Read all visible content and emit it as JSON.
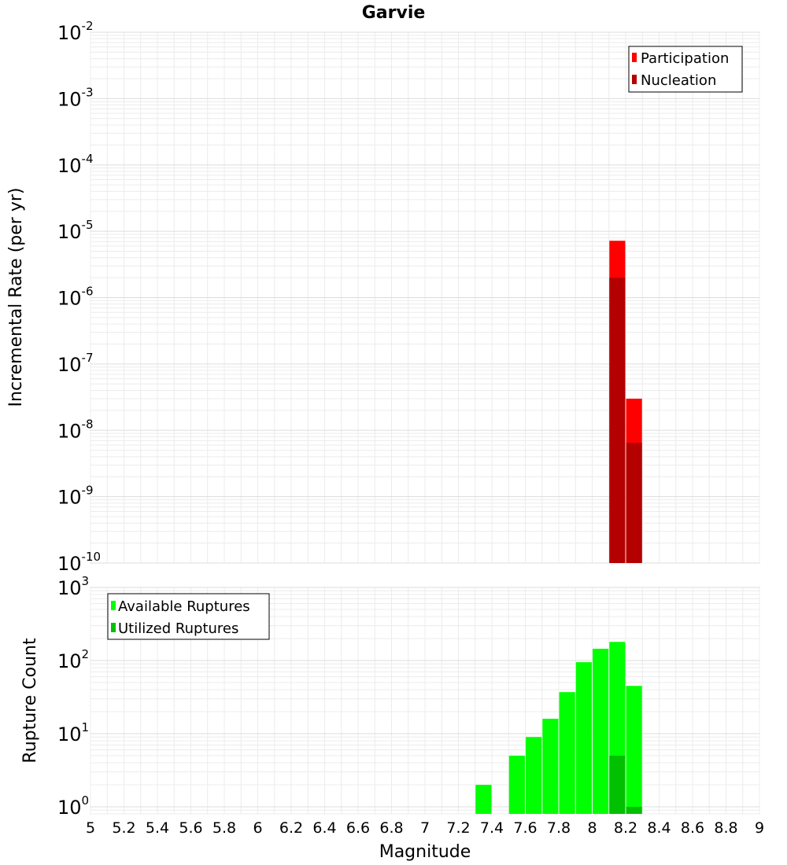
{
  "chart_data": [
    {
      "type": "bar",
      "title": "Garvie",
      "xlabel": "",
      "ylabel": "Incremental Rate (per yr)",
      "xlim": [
        5,
        9
      ],
      "ylim": [
        1e-10,
        0.01
      ],
      "yscale": "log",
      "grid": true,
      "legend_position": "top-right",
      "ytick_labels": [
        {
          "base": "10",
          "exp": "-10",
          "value": 1e-10
        },
        {
          "base": "10",
          "exp": "-9",
          "value": 1e-09
        },
        {
          "base": "10",
          "exp": "-8",
          "value": 1e-08
        },
        {
          "base": "10",
          "exp": "-7",
          "value": 1e-07
        },
        {
          "base": "10",
          "exp": "-6",
          "value": 1e-06
        },
        {
          "base": "10",
          "exp": "-5",
          "value": 1e-05
        },
        {
          "base": "10",
          "exp": "-4",
          "value": 0.0001
        },
        {
          "base": "10",
          "exp": "-3",
          "value": 0.001
        },
        {
          "base": "10",
          "exp": "-2",
          "value": 0.01
        }
      ],
      "series": [
        {
          "name": "Participation",
          "color": "#ff0000",
          "x": [
            8.15,
            8.25
          ],
          "values": [
            7.2e-06,
            3e-08
          ]
        },
        {
          "name": "Nucleation",
          "color": "#b40000",
          "x": [
            8.15,
            8.25
          ],
          "values": [
            2e-06,
            6.5e-09
          ]
        }
      ]
    },
    {
      "type": "bar",
      "title": "",
      "xlabel": "Magnitude",
      "ylabel": "Rupture Count",
      "xlim": [
        5,
        9
      ],
      "ylim": [
        0.8,
        1000
      ],
      "yscale": "log",
      "grid": true,
      "legend_position": "top-left",
      "xtick_labels": [
        "5",
        "5.2",
        "5.4",
        "5.6",
        "5.8",
        "6",
        "6.2",
        "6.4",
        "6.6",
        "6.8",
        "7",
        "7.2",
        "7.4",
        "7.6",
        "7.8",
        "8",
        "8.2",
        "8.4",
        "8.6",
        "8.8",
        "9"
      ],
      "ytick_labels": [
        {
          "base": "10",
          "exp": "0",
          "value": 1
        },
        {
          "base": "10",
          "exp": "1",
          "value": 10
        },
        {
          "base": "10",
          "exp": "2",
          "value": 100
        },
        {
          "base": "10",
          "exp": "3",
          "value": 1000
        }
      ],
      "series": [
        {
          "name": "Available Ruptures",
          "color": "#00ff00",
          "x": [
            7.35,
            7.55,
            7.65,
            7.75,
            7.85,
            7.95,
            8.05,
            8.15,
            8.25
          ],
          "values": [
            2,
            5,
            9,
            16,
            37,
            95,
            145,
            180,
            45
          ]
        },
        {
          "name": "Utilized Ruptures",
          "color": "#00c000",
          "x": [
            8.15,
            8.25
          ],
          "values": [
            5,
            1
          ]
        }
      ]
    }
  ]
}
